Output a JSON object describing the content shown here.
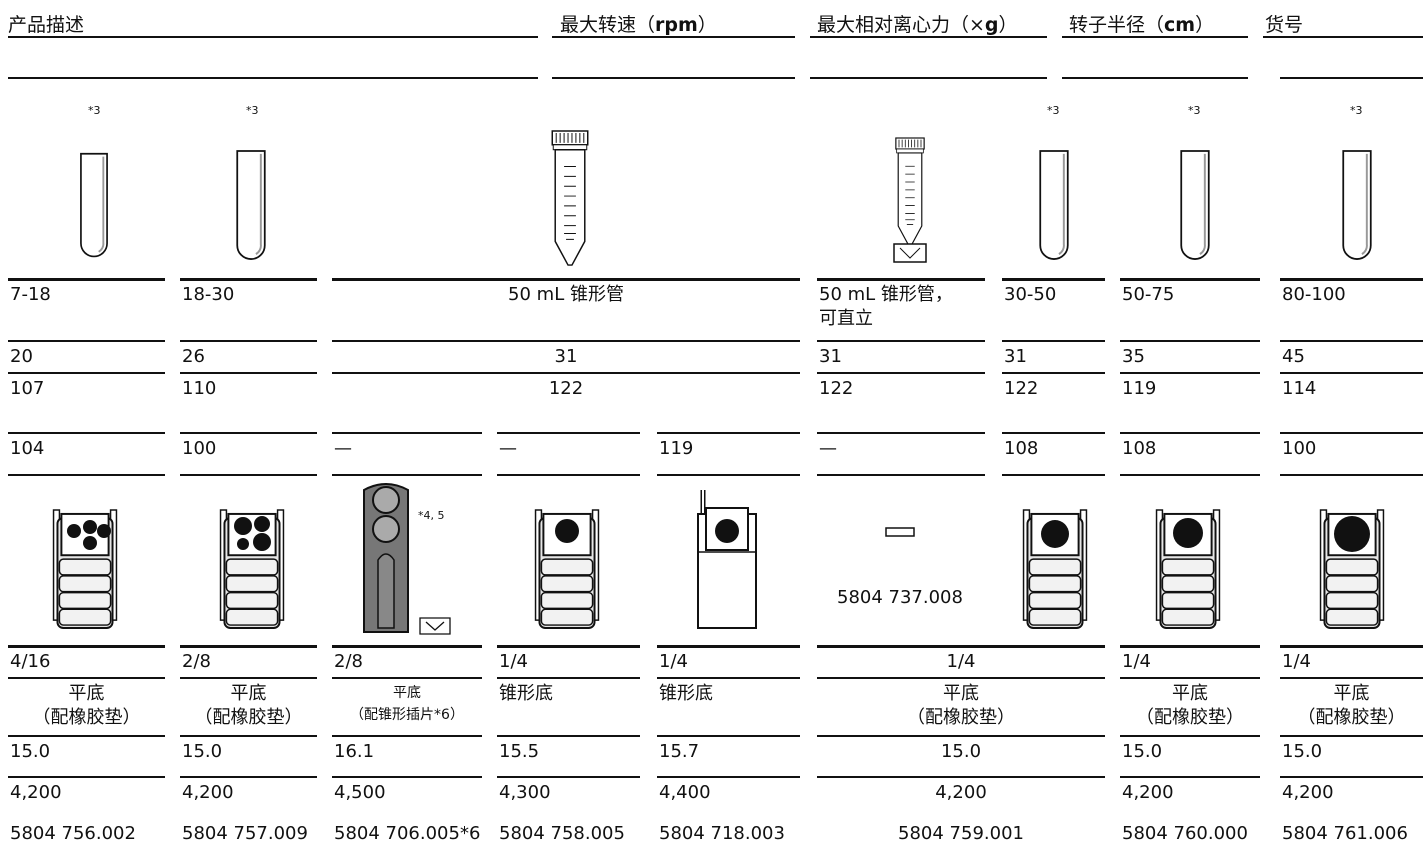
{
  "header": {
    "columns": [
      {
        "prefix": "产品描述"
      },
      {
        "prefix": "最大转速（",
        "unit": "rpm",
        "suffix": "）"
      },
      {
        "prefix": "最大相对离心力（×",
        "unit": "g",
        "suffix": "）"
      },
      {
        "prefix": "转子半径（",
        "unit": "cm",
        "suffix": "）"
      },
      {
        "prefix": "货号"
      }
    ]
  },
  "table": {
    "tube_notes": [
      "*3",
      "*3",
      "*3",
      "*3",
      "*3"
    ],
    "bucket_note": "*4, 5",
    "adapter_part": "5804 737.008",
    "rows": [
      [
        "7-18",
        "18-30",
        "50 mL 锥形管",
        "50 mL 锥形管，\n可直立",
        "30-50",
        "50-75",
        "80-100"
      ],
      [
        "20",
        "26",
        "31",
        "31",
        "31",
        "35",
        "45"
      ],
      [
        "107",
        "110",
        "122",
        "122",
        "122",
        "119",
        "114"
      ],
      [
        "104",
        "100",
        "—",
        "—",
        "119",
        "—",
        "108",
        "108",
        "100"
      ],
      [
        "4/16",
        "2/8",
        "2/8",
        "1/4",
        "1/4",
        "1/4",
        "1/4",
        "1/4"
      ],
      [
        "平底\n（配橡胶垫）",
        "平底\n（配橡胶垫）",
        "平底\n（配锥形插片*6）",
        "锥形底",
        "锥形底",
        "平底\n（配橡胶垫）",
        "平底\n（配橡胶垫）",
        "平底\n（配橡胶垫）"
      ],
      [
        "15.0",
        "15.0",
        "16.1",
        "15.5",
        "15.7",
        "15.0",
        "15.0",
        "15.0"
      ],
      [
        "4,200",
        "4,200",
        "4,500",
        "4,300",
        "4,400",
        "4,200",
        "4,200",
        "4,200"
      ],
      [
        "5804 756.002",
        "5804 757.009",
        "5804 706.005*6",
        "5804 758.005",
        "5804 718.003",
        "5804 759.001",
        "5804 760.000",
        "5804 761.006"
      ]
    ]
  }
}
